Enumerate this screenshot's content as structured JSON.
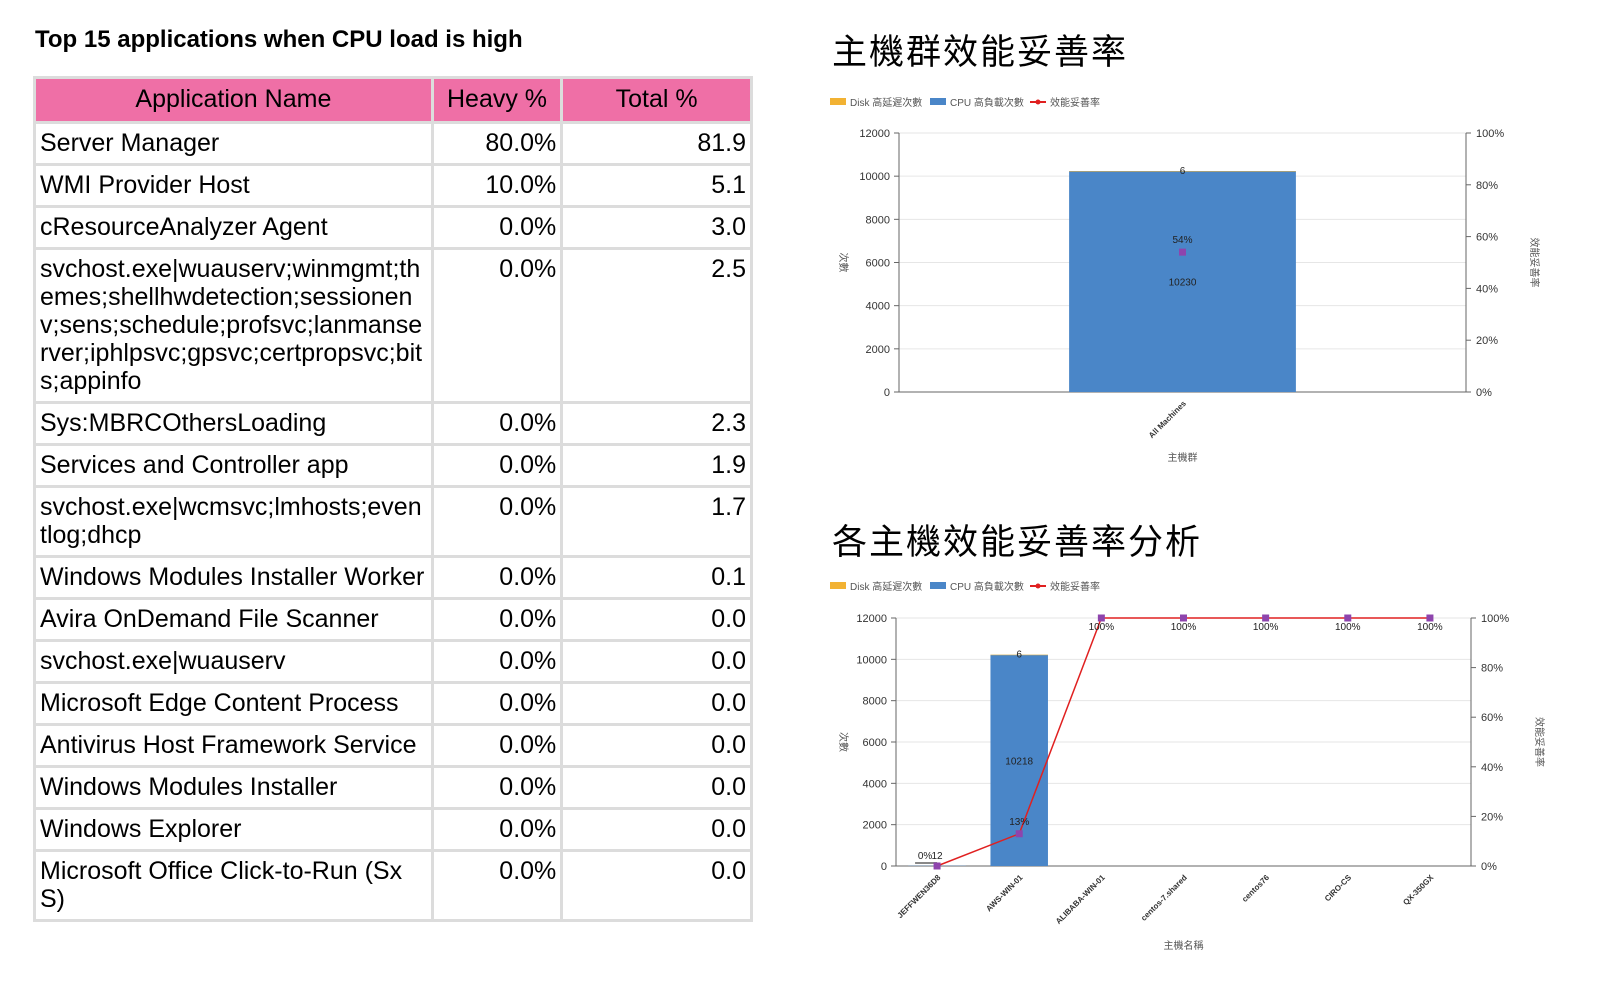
{
  "table": {
    "title": "Top 15 applications when CPU load is high",
    "headers": [
      "Application Name",
      "Heavy %",
      "Total %"
    ],
    "rows": [
      {
        "name": "Server Manager",
        "heavy": "80.0%",
        "total": "81.9"
      },
      {
        "name": "WMI Provider Host",
        "heavy": "10.0%",
        "total": "5.1"
      },
      {
        "name": "cResourceAnalyzer Agent",
        "heavy": "0.0%",
        "total": "3.0"
      },
      {
        "name": "svchost.exe|wuauserv;winmgmt;themes;shellhwdetection;sessionenv;sens;schedule;profsvc;lanmanserver;iphlpsvc;gpsvc;certpropsvc;bits;appinfo",
        "heavy": "0.0%",
        "total": "2.5"
      },
      {
        "name": "Sys:MBRCOthersLoading",
        "heavy": "0.0%",
        "total": "2.3"
      },
      {
        "name": "Services and Controller app",
        "heavy": "0.0%",
        "total": "1.9"
      },
      {
        "name": "svchost.exe|wcmsvc;lmhosts;eventlog;dhcp",
        "heavy": "0.0%",
        "total": "1.7"
      },
      {
        "name": "Windows Modules Installer Worker",
        "heavy": "0.0%",
        "total": "0.1"
      },
      {
        "name": "Avira OnDemand File Scanner",
        "heavy": "0.0%",
        "total": "0.0"
      },
      {
        "name": "svchost.exe|wuauserv",
        "heavy": "0.0%",
        "total": "0.0"
      },
      {
        "name": "Microsoft Edge Content Process",
        "heavy": "0.0%",
        "total": "0.0"
      },
      {
        "name": "Antivirus Host Framework Service",
        "heavy": "0.0%",
        "total": "0.0"
      },
      {
        "name": "Windows Modules Installer",
        "heavy": "0.0%",
        "total": "0.0"
      },
      {
        "name": "Windows Explorer",
        "heavy": "0.0%",
        "total": "0.0"
      },
      {
        "name": "Microsoft Office Click-to-Run (SxS)",
        "heavy": "0.0%",
        "total": "0.0"
      }
    ]
  },
  "colors": {
    "header_bg": "#ef6fa6",
    "cpu_bar": "#4a86c8",
    "disk_bar": "#f2b233",
    "line": "#e02020",
    "marker": "#8e44ad"
  },
  "chart_data": [
    {
      "type": "bar",
      "title": "主機群效能妥善率",
      "legend": [
        "Disk 高延遲次數",
        "CPU 高負載次數",
        "效能妥善率"
      ],
      "legend_position": "top-left",
      "categories": [
        "All Machines"
      ],
      "series": [
        {
          "name": "Disk 高延遲次數",
          "values": [
            6
          ]
        },
        {
          "name": "CPU 高負載次數",
          "values": [
            10230
          ]
        },
        {
          "name": "效能妥善率",
          "values": [
            54
          ],
          "axis": "right"
        }
      ],
      "bar_labels": [
        "6",
        "10230"
      ],
      "line_labels": [
        "54%"
      ],
      "xlabel": "主機群",
      "ylabel": "次數",
      "ylabel_right": "效能妥善率",
      "ylim": [
        0,
        12000
      ],
      "ylim_right": [
        0,
        100
      ],
      "yticks": [
        0,
        2000,
        4000,
        6000,
        8000,
        10000,
        12000
      ],
      "yticks_right": [
        "0%",
        "20%",
        "40%",
        "60%",
        "80%",
        "100%"
      ],
      "grid": true
    },
    {
      "type": "bar",
      "title": "各主機效能妥善率分析",
      "legend": [
        "Disk 高延遲次數",
        "CPU 高負載次數",
        "效能妥善率"
      ],
      "legend_position": "top-left",
      "categories": [
        "JEFFWEN36D8",
        "AWS-WIN-01",
        "ALIBABA-WIN-01",
        "centos-7.shared",
        "centos76",
        "CIRO-CS",
        "QX-350GX"
      ],
      "series": [
        {
          "name": "Disk 高延遲次數",
          "values": [
            0,
            6,
            0,
            0,
            0,
            0,
            0
          ]
        },
        {
          "name": "CPU 高負載次數",
          "values": [
            12,
            10218,
            0,
            0,
            0,
            0,
            0
          ]
        },
        {
          "name": "效能妥善率",
          "values": [
            0,
            13,
            100,
            100,
            100,
            100,
            100
          ],
          "axis": "right"
        }
      ],
      "bar_labels": [
        "12",
        "10218"
      ],
      "disk_labels": [
        "6"
      ],
      "line_labels": [
        "0%",
        "13%",
        "100%",
        "100%",
        "100%",
        "100%",
        "100%"
      ],
      "xlabel": "主機名稱",
      "ylabel": "次數",
      "ylabel_right": "效能妥善率",
      "ylim": [
        0,
        12000
      ],
      "ylim_right": [
        0,
        100
      ],
      "yticks": [
        0,
        2000,
        4000,
        6000,
        8000,
        10000,
        12000
      ],
      "yticks_right": [
        "0%",
        "20%",
        "40%",
        "60%",
        "80%",
        "100%"
      ],
      "grid": true
    }
  ]
}
